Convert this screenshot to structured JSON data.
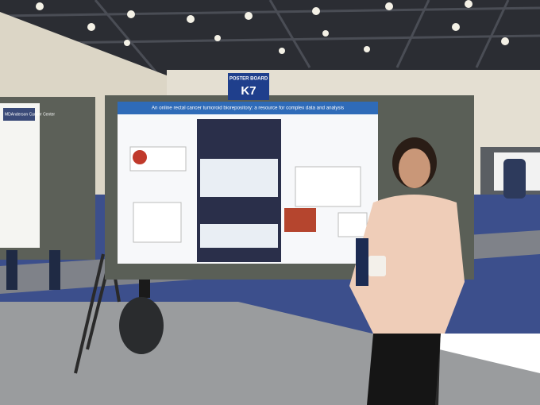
{
  "sign": {
    "label": "POSTER BOARD",
    "number": "K7"
  },
  "poster": {
    "title": "An online rectal cancer tumoroid biorepository: a resource for complex data and analysis"
  },
  "left_poster": {
    "logo": "MDAnderson Cancer Center"
  }
}
